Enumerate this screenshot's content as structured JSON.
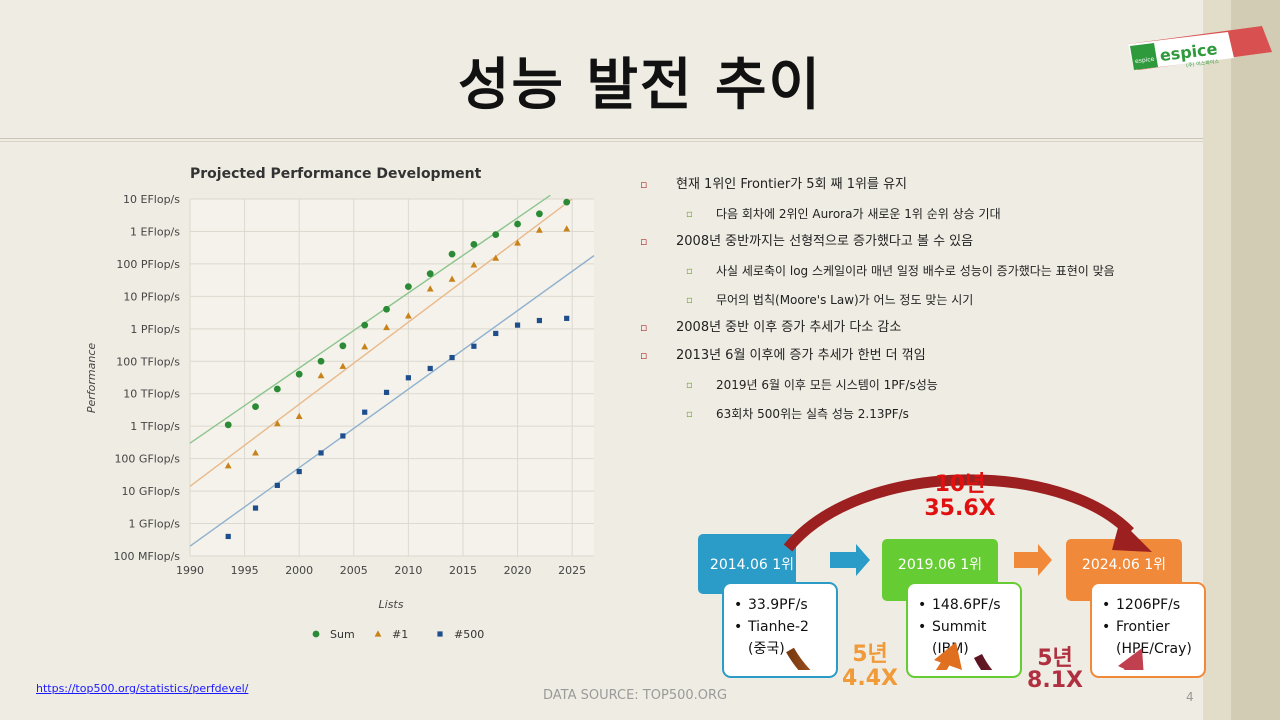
{
  "title": "성능 발전 추이",
  "logo": {
    "text": "espice",
    "sub": "(주) 이스파이스",
    "mark": "espice"
  },
  "chart_data": {
    "type": "scatter",
    "title": "Projected Performance Development",
    "xlabel": "Lists",
    "ylabel": "Performance",
    "xlim": [
      1990,
      2027
    ],
    "y_scale": "log",
    "ylim": [
      100000000,
      10000000000000000000
    ],
    "x_ticks": [
      "1990",
      "1995",
      "2000",
      "2005",
      "2010",
      "2015",
      "2020",
      "2025"
    ],
    "y_ticks": [
      "100 MFlop/s",
      "1 GFlop/s",
      "10 GFlop/s",
      "100 GFlop/s",
      "1 TFlop/s",
      "10 TFlop/s",
      "100 TFlop/s",
      "1 PFlop/s",
      "10 PFlop/s",
      "100 PFlop/s",
      "1 EFlop/s",
      "10 EFlop/s"
    ],
    "grid": true,
    "legend_position": "bottom",
    "series": [
      {
        "name": "Sum",
        "color": "#2a8a35",
        "marker": "circle",
        "x": [
          1993.5,
          1996,
          1998,
          2000,
          2002,
          2004,
          2006,
          2008,
          2010,
          2012,
          2014,
          2016,
          2018,
          2020,
          2022,
          2024.5
        ],
        "y": [
          1100000000000.0,
          4000000000000.0,
          14000000000000.0,
          40000000000000.0,
          100000000000000.0,
          300000000000000.0,
          1300000000000000.0,
          4000000000000000.0,
          2e+16,
          5e+16,
          2e+17,
          4e+17,
          8e+17,
          1.7e+18,
          3.5e+18,
          8e+18
        ]
      },
      {
        "name": "#1",
        "color": "#c7821a",
        "marker": "triangle",
        "x": [
          1993.5,
          1996,
          1998,
          2000,
          2002,
          2004,
          2006,
          2008,
          2010,
          2012,
          2014,
          2016,
          2018,
          2020,
          2022,
          2024.5
        ],
        "y": [
          60000000000.0,
          150000000000.0,
          1200000000000.0,
          2000000000000.0,
          36000000000000.0,
          70000000000000.0,
          280000000000000.0,
          1100000000000000.0,
          2500000000000000.0,
          1.7e+16,
          3.4e+16,
          9.3e+16,
          1.5e+17,
          4.4e+17,
          1.1e+18,
          1.2e+18
        ]
      },
      {
        "name": "#500",
        "color": "#1f4e8c",
        "marker": "square",
        "x": [
          1993.5,
          1996,
          1998,
          2000,
          2002,
          2004,
          2006,
          2008,
          2010,
          2012,
          2014,
          2016,
          2018,
          2020,
          2022,
          2024.5
        ],
        "y": [
          400000000.0,
          3000000000.0,
          15000000000.0,
          40000000000.0,
          150000000000.0,
          500000000000.0,
          2700000000000.0,
          11000000000000.0,
          31000000000000.0,
          60000000000000.0,
          130000000000000.0,
          290000000000000.0,
          720000000000000.0,
          1300000000000000.0,
          1800000000000000.0,
          2100000000000000.0
        ]
      }
    ],
    "trend_lines": [
      {
        "name": "sum-trend",
        "color": "#8cc48e",
        "x": [
          1990,
          2023
        ],
        "y": [
          300000000000.0,
          1.3e+19
        ]
      },
      {
        "name": "first-trend",
        "color": "#e9b98a",
        "x": [
          1990,
          2025
        ],
        "y": [
          14000000000.0,
          1e+19
        ]
      },
      {
        "name": "last-trend",
        "color": "#8fb1cf",
        "x": [
          1990,
          2027
        ],
        "y": [
          200000000.0,
          1.8e+17
        ]
      }
    ]
  },
  "bullets": [
    {
      "level": 1,
      "text": "현재 1위인 Frontier가 5회 째 1위를 유지"
    },
    {
      "level": 2,
      "text": "다음 회차에 2위인 Aurora가 새로운 1위 순위 상승 기대"
    },
    {
      "level": 1,
      "text": "2008년 중반까지는 선형적으로 증가했다고 볼 수 있음"
    },
    {
      "level": 2,
      "text": "사실 세로축이 log 스케일이라 매년 일정 배수로 성능이 증가했다는 표현이 맞음"
    },
    {
      "level": 2,
      "text": "무어의 법칙(Moore's Law)가 어느 정도 맞는 시기"
    },
    {
      "level": 1,
      "text": "2008년 중반 이후 증가 추세가 다소 감소"
    },
    {
      "level": 1,
      "text": "2013년 6월 이후에 증가 추세가 한번 더 꺾임"
    },
    {
      "level": 2,
      "text": "2019년 6월 이후 모든 시스템이 1PF/s성능"
    },
    {
      "level": 2,
      "text": "63회차 500위는 실측 성능 2.13PF/s"
    }
  ],
  "timeline": {
    "boxes": [
      {
        "header": "2014.06 1위",
        "perf": "33.9PF/s",
        "system1": "Tianhe-2",
        "system2": "(중국)",
        "color": "#2b9cc7",
        "border": "#2b9cc7"
      },
      {
        "header": "2019.06 1위",
        "perf": "148.6PF/s",
        "system1": "Summit",
        "system2": "(IBM)",
        "color": "#66cc33",
        "border": "#66cc33"
      },
      {
        "header": "2024.06 1위",
        "perf": "1206PF/s",
        "system1": "Frontier",
        "system2": "(HPE/Cray)",
        "color": "#f08a3a",
        "border": "#f08a3a"
      }
    ],
    "overall": {
      "years": "10년",
      "factor": "35.6X",
      "color": "#e01010"
    },
    "step1": {
      "years": "5년",
      "factor": "4.4X",
      "color": "#f09a3a"
    },
    "step2": {
      "years": "5년",
      "factor": "8.1X",
      "color": "#b03040"
    }
  },
  "footer": {
    "link": "https://top500.org/statistics/perfdevel/",
    "source": "DATA SOURCE: TOP500.ORG",
    "page": "4"
  }
}
